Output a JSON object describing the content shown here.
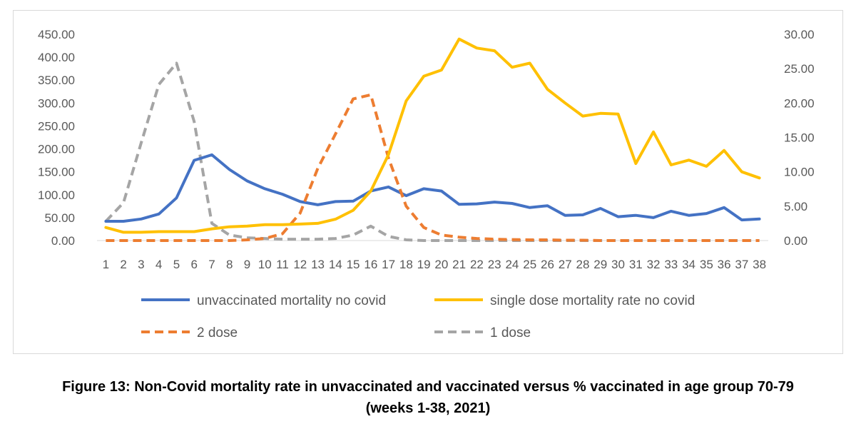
{
  "caption": {
    "line1": "Figure 13: Non-Covid mortality rate in unvaccinated and vaccinated versus % vaccinated in age group 70-79",
    "line2": "(weeks 1-38, 2021)"
  },
  "chart_data": {
    "type": "line",
    "title": "",
    "xlabel": "",
    "ylabel": "",
    "y2label": "",
    "grid": false,
    "legend_position": "bottom",
    "categories": [
      "1",
      "2",
      "3",
      "4",
      "5",
      "6",
      "7",
      "8",
      "9",
      "10",
      "11",
      "12",
      "13",
      "14",
      "15",
      "16",
      "17",
      "18",
      "19",
      "20",
      "21",
      "22",
      "23",
      "24",
      "25",
      "26",
      "27",
      "28",
      "29",
      "30",
      "31",
      "32",
      "33",
      "34",
      "35",
      "36",
      "37",
      "38"
    ],
    "y_left": {
      "range": [
        0,
        450
      ],
      "ticks": [
        "0.00",
        "50.00",
        "100.00",
        "150.00",
        "200.00",
        "250.00",
        "300.00",
        "350.00",
        "400.00",
        "450.00"
      ]
    },
    "y_right": {
      "range": [
        0,
        30
      ],
      "ticks": [
        "0.00",
        "5.00",
        "10.00",
        "15.00",
        "20.00",
        "25.00",
        "30.00"
      ]
    },
    "series": [
      {
        "name": "unvaccinated mortality no covid",
        "axis": "left",
        "color": "#4472c4",
        "style": "solid",
        "values": [
          42,
          42,
          47,
          58,
          93,
          175,
          187,
          155,
          130,
          113,
          101,
          85,
          78,
          85,
          86,
          108,
          117,
          98,
          113,
          108,
          79,
          80,
          84,
          81,
          72,
          76,
          55,
          56,
          70,
          52,
          55,
          50,
          64,
          55,
          59,
          72,
          45,
          47
        ]
      },
      {
        "name": "single dose mortality rate no covid",
        "axis": "right",
        "color": "#ffc000",
        "style": "solid",
        "values": [
          1.9,
          1.2,
          1.2,
          1.3,
          1.3,
          1.3,
          1.7,
          2.0,
          2.1,
          2.3,
          2.3,
          2.4,
          2.5,
          3.1,
          4.4,
          7.2,
          12.5,
          20.3,
          23.9,
          24.8,
          29.3,
          28.0,
          27.6,
          25.2,
          25.8,
          22.0,
          20.0,
          18.1,
          18.5,
          18.4,
          11.2,
          15.8,
          11.0,
          11.7,
          10.8,
          13.1,
          10.0,
          9.1
        ]
      },
      {
        "name": "2 dose",
        "axis": "right",
        "color": "#ed7d31",
        "style": "dashed",
        "values": [
          0,
          0,
          0,
          0,
          0,
          0,
          0,
          0,
          0.1,
          0.3,
          1.0,
          4.0,
          10.5,
          15.5,
          20.6,
          21.2,
          12.0,
          5.0,
          1.9,
          0.8,
          0.5,
          0.3,
          0.2,
          0.15,
          0.1,
          0.1,
          0.05,
          0.05,
          0,
          0,
          0,
          0,
          0,
          0,
          0,
          0,
          0,
          0
        ]
      },
      {
        "name": "1 dose",
        "axis": "right",
        "color": "#a5a5a5",
        "style": "dashed",
        "values": [
          2.8,
          5.5,
          14.2,
          22.7,
          25.8,
          17.3,
          2.5,
          0.8,
          0.4,
          0.3,
          0.2,
          0.2,
          0.2,
          0.3,
          0.8,
          2.1,
          0.6,
          0.1,
          0,
          0,
          0,
          0,
          0,
          0,
          0,
          0,
          0,
          0,
          0,
          0,
          0,
          0,
          0,
          0,
          0,
          0,
          0,
          0
        ]
      }
    ]
  }
}
